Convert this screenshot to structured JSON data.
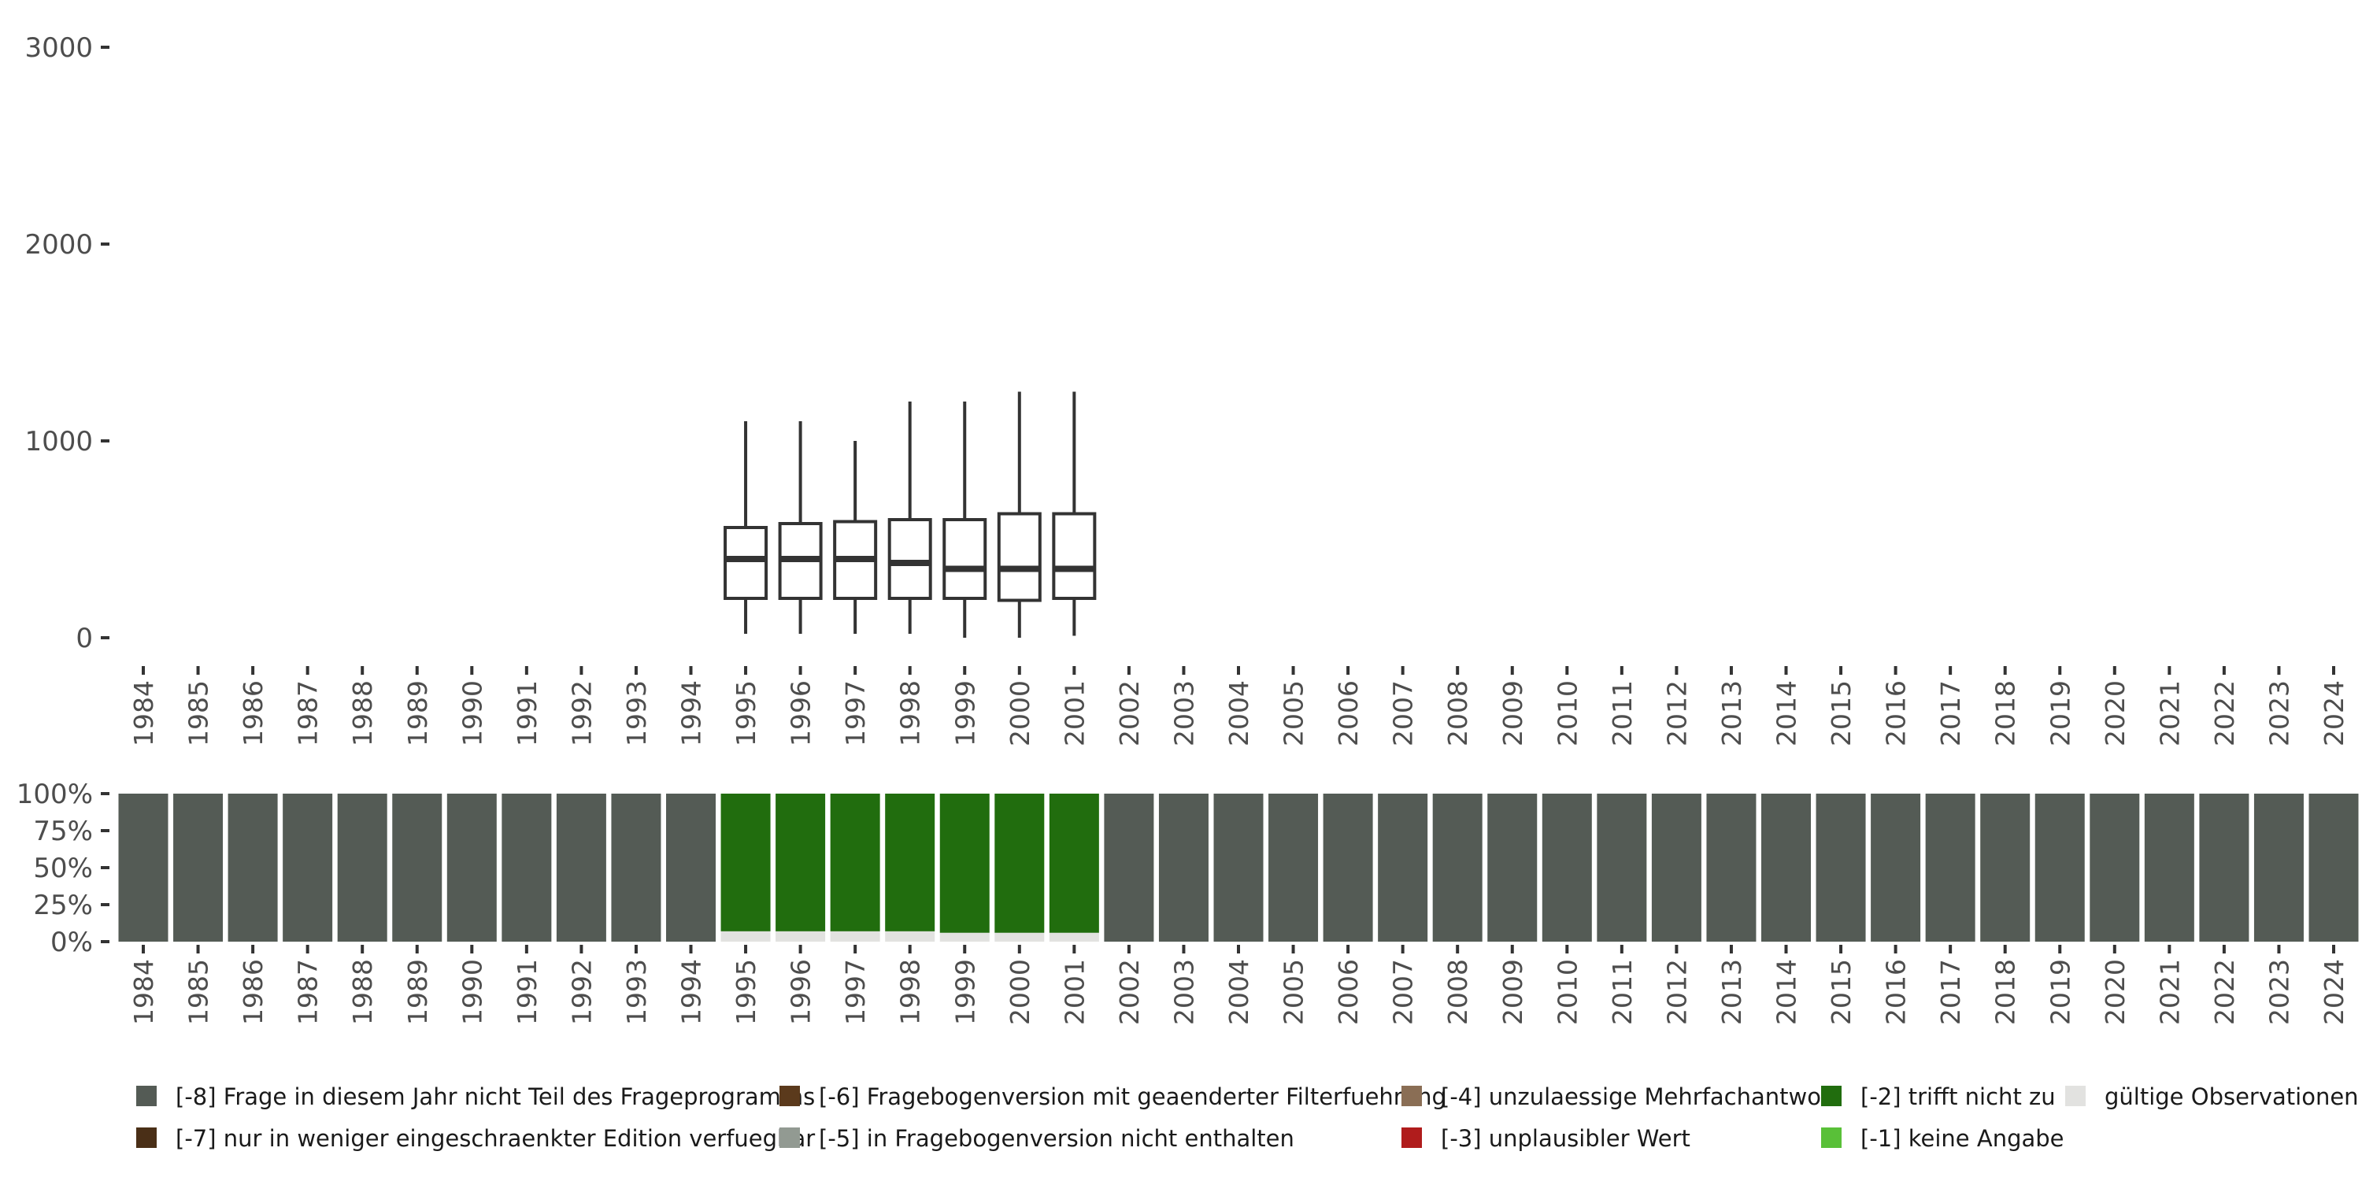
{
  "chart_data": [
    {
      "type": "boxplot",
      "y_ticks": [
        "0",
        "1000",
        "2000",
        "3000"
      ],
      "ylim": [
        0,
        3000
      ],
      "grid": false,
      "categories": [
        "1984",
        "1985",
        "1986",
        "1987",
        "1988",
        "1989",
        "1990",
        "1991",
        "1992",
        "1993",
        "1994",
        "1995",
        "1996",
        "1997",
        "1998",
        "1999",
        "2000",
        "2001",
        "2002",
        "2003",
        "2004",
        "2005",
        "2006",
        "2007",
        "2008",
        "2009",
        "2010",
        "2011",
        "2012",
        "2013",
        "2014",
        "2015",
        "2016",
        "2017",
        "2018",
        "2019",
        "2020",
        "2021",
        "2022",
        "2023",
        "2024"
      ],
      "boxes": [
        {
          "year": "1995",
          "min": 20,
          "q1": 200,
          "median": 400,
          "q3": 560,
          "max": 1100
        },
        {
          "year": "1996",
          "min": 20,
          "q1": 200,
          "median": 400,
          "q3": 580,
          "max": 1100
        },
        {
          "year": "1997",
          "min": 20,
          "q1": 200,
          "median": 400,
          "q3": 590,
          "max": 1000
        },
        {
          "year": "1998",
          "min": 20,
          "q1": 200,
          "median": 380,
          "q3": 600,
          "max": 1200
        },
        {
          "year": "1999",
          "min": 0,
          "q1": 200,
          "median": 350,
          "q3": 600,
          "max": 1200
        },
        {
          "year": "2000",
          "min": 0,
          "q1": 190,
          "median": 350,
          "q3": 630,
          "max": 1250
        },
        {
          "year": "2001",
          "min": 10,
          "q1": 200,
          "median": 350,
          "q3": 630,
          "max": 1250
        }
      ]
    },
    {
      "type": "stacked_bar",
      "y_ticks": [
        "0%",
        "25%",
        "50%",
        "75%",
        "100%"
      ],
      "ylim": [
        0,
        100
      ],
      "categories": [
        "1984",
        "1985",
        "1986",
        "1987",
        "1988",
        "1989",
        "1990",
        "1991",
        "1992",
        "1993",
        "1994",
        "1995",
        "1996",
        "1997",
        "1998",
        "1999",
        "2000",
        "2001",
        "2002",
        "2003",
        "2004",
        "2005",
        "2006",
        "2007",
        "2008",
        "2009",
        "2010",
        "2011",
        "2012",
        "2013",
        "2014",
        "2015",
        "2016",
        "2017",
        "2018",
        "2019",
        "2020",
        "2021",
        "2022",
        "2023",
        "2024"
      ],
      "series": [
        {
          "name": "gültige Observationen",
          "color": "#e2e2e0",
          "values": [
            0,
            0,
            0,
            0,
            0,
            0,
            0,
            0,
            0,
            0,
            0,
            7,
            7,
            7,
            7,
            6,
            6,
            6,
            0,
            0,
            0,
            0,
            0,
            0,
            0,
            0,
            0,
            0,
            0,
            0,
            0,
            0,
            0,
            0,
            0,
            0,
            0,
            0,
            0,
            0,
            0
          ]
        },
        {
          "name": "[-2] trifft nicht zu",
          "color": "#216d0e",
          "values": [
            0,
            0,
            0,
            0,
            0,
            0,
            0,
            0,
            0,
            0,
            0,
            93,
            93,
            93,
            93,
            94,
            94,
            94,
            0,
            0,
            0,
            0,
            0,
            0,
            0,
            0,
            0,
            0,
            0,
            0,
            0,
            0,
            0,
            0,
            0,
            0,
            0,
            0,
            0,
            0,
            0
          ]
        },
        {
          "name": "[-8] Frage in diesem Jahr nicht Teil des Frageprogramms",
          "color": "#545b55",
          "values": [
            100,
            100,
            100,
            100,
            100,
            100,
            100,
            100,
            100,
            100,
            100,
            0,
            0,
            0,
            0,
            0,
            0,
            0,
            100,
            100,
            100,
            100,
            100,
            100,
            100,
            100,
            100,
            100,
            100,
            100,
            100,
            100,
            100,
            100,
            100,
            100,
            100,
            100,
            100,
            100,
            100
          ]
        }
      ]
    }
  ],
  "legend": {
    "placement": "bottom",
    "items": [
      {
        "label": "[-8] Frage in diesem Jahr nicht Teil des Frageprogramms",
        "color": "#545b55"
      },
      {
        "label": "[-7] nur in weniger eingeschraenkter Edition verfuegbar",
        "color": "#4a2f17"
      },
      {
        "label": "[-6] Fragebogenversion mit geaenderter Filterfuehrung",
        "color": "#5b3a1c"
      },
      {
        "label": "[-5] in Fragebogenversion nicht enthalten",
        "color": "#929a92"
      },
      {
        "label": "[-4] unzulaessige Mehrfachantwort",
        "color": "#8a6e55"
      },
      {
        "label": "[-3] unplausibler Wert",
        "color": "#b01c1c"
      },
      {
        "label": "[-2] trifft nicht zu",
        "color": "#216d0e"
      },
      {
        "label": "[-1] keine Angabe",
        "color": "#59c038"
      },
      {
        "label": "gültige Observationen",
        "color": "#e2e2e0"
      }
    ]
  }
}
